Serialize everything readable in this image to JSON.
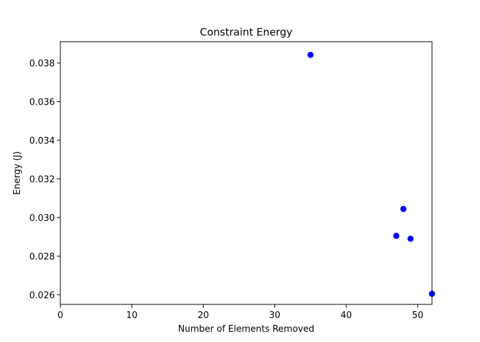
{
  "chart_data": {
    "type": "scatter",
    "title": "Constraint Energy",
    "xlabel": "Number of Elements Removed",
    "ylabel": "Energy (J)",
    "xlim": [
      0,
      52
    ],
    "ylim": [
      0.0255,
      0.0391
    ],
    "x_ticks": [
      0,
      10,
      20,
      30,
      40,
      50
    ],
    "y_ticks": [
      0.026,
      0.028,
      0.03,
      0.032,
      0.034,
      0.036,
      0.038
    ],
    "x_tick_labels": [
      "0",
      "10",
      "20",
      "30",
      "40",
      "50"
    ],
    "y_tick_labels": [
      "0.026",
      "0.028",
      "0.030",
      "0.032",
      "0.034",
      "0.036",
      "0.038"
    ],
    "grid": false,
    "marker_color": "#0000ff",
    "points": [
      {
        "x": 35,
        "y": 0.03842
      },
      {
        "x": 48,
        "y": 0.03044
      },
      {
        "x": 47,
        "y": 0.02905
      },
      {
        "x": 49,
        "y": 0.0289
      },
      {
        "x": 52,
        "y": 0.02605
      }
    ]
  }
}
